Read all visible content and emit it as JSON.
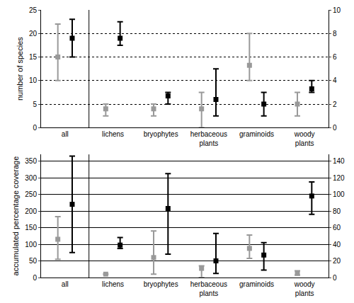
{
  "chart_data": [
    {
      "type": "scatter",
      "ylabel": "number of species",
      "categories": [
        "all",
        "lichens",
        "bryophytes",
        "herbaceous plants",
        "graminoids",
        "woody plants"
      ],
      "ylim": [
        0,
        25
      ],
      "yticks": [
        0,
        5,
        10,
        15,
        20,
        25
      ],
      "y2lim": [
        0,
        10
      ],
      "y2ticks": [
        0,
        2,
        4,
        6,
        8,
        10
      ],
      "grid": true,
      "marker": "square",
      "series": [
        {
          "color": "#999999",
          "axis": "y",
          "values": [
            15,
            null,
            null,
            null,
            null,
            null
          ],
          "lower": [
            10,
            null,
            null,
            null,
            null,
            null
          ],
          "upper": [
            22,
            null,
            null,
            null,
            null,
            null
          ]
        },
        {
          "color": "#000000",
          "axis": "y",
          "values": [
            19,
            null,
            null,
            null,
            null,
            null
          ],
          "lower": [
            15,
            null,
            null,
            null,
            null,
            null
          ],
          "upper": [
            23,
            null,
            null,
            null,
            null,
            null
          ]
        },
        {
          "color": "#999999",
          "axis": "y2",
          "values": [
            null,
            1.6,
            1.6,
            1.6,
            5.3,
            2
          ],
          "lower": [
            null,
            1,
            1,
            0,
            4,
            1
          ],
          "upper": [
            null,
            2,
            2,
            3,
            8,
            3
          ]
        },
        {
          "color": "#000000",
          "axis": "y2",
          "values": [
            null,
            7.6,
            2.7,
            2.4,
            2,
            3.3
          ],
          "lower": [
            null,
            7,
            2,
            1,
            1,
            3
          ],
          "upper": [
            null,
            9,
            3,
            5,
            3,
            4
          ]
        }
      ]
    },
    {
      "type": "scatter",
      "ylabel": "accumulated percentage coverage",
      "categories": [
        "all",
        "lichens",
        "bryophytes",
        "herbaceous plants",
        "graminoids",
        "woody plants"
      ],
      "ylim": [
        0,
        370
      ],
      "yticks": [
        0,
        50,
        100,
        150,
        200,
        250,
        300,
        350
      ],
      "y2lim": [
        0,
        148
      ],
      "y2ticks": [
        0,
        20,
        40,
        60,
        80,
        100,
        120,
        140
      ],
      "grid": true,
      "marker": "square",
      "series": [
        {
          "color": "#999999",
          "axis": "y",
          "values": [
            115,
            null,
            null,
            null,
            null,
            null
          ],
          "lower": [
            55,
            null,
            null,
            null,
            null,
            null
          ],
          "upper": [
            183,
            null,
            null,
            null,
            null,
            null
          ]
        },
        {
          "color": "#000000",
          "axis": "y",
          "values": [
            220,
            null,
            null,
            null,
            null,
            null
          ],
          "lower": [
            75,
            null,
            null,
            null,
            null,
            null
          ],
          "upper": [
            365,
            null,
            null,
            null,
            null,
            null
          ]
        },
        {
          "color": "#999999",
          "axis": "y2",
          "values": [
            null,
            4,
            24,
            11,
            35,
            5
          ],
          "lower": [
            null,
            4,
            4,
            0,
            23,
            3
          ],
          "upper": [
            null,
            4,
            56,
            14,
            51,
            8
          ]
        },
        {
          "color": "#000000",
          "axis": "y2",
          "values": [
            null,
            39,
            83,
            20,
            27,
            98
          ],
          "lower": [
            null,
            35,
            28,
            5,
            9,
            76
          ],
          "upper": [
            null,
            48,
            125,
            53,
            42,
            115
          ]
        }
      ]
    }
  ]
}
